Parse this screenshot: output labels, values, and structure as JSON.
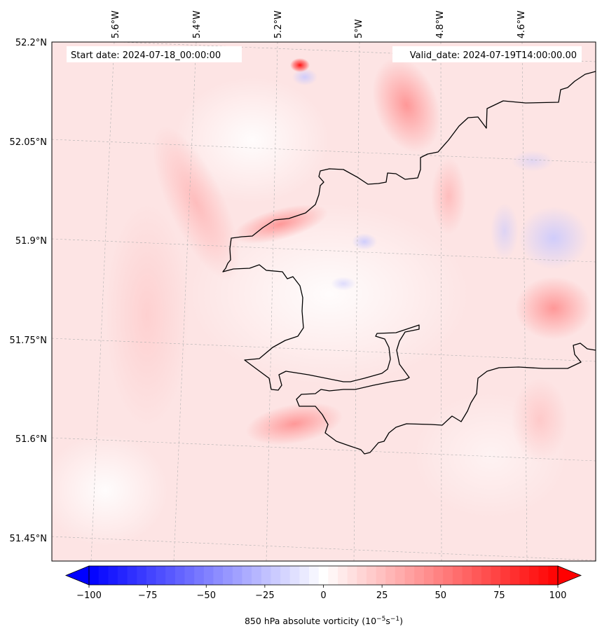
{
  "map": {
    "start_date_label": "Start date: 2024-07-18_00:00:00",
    "valid_date_label": "Valid_date: 2024-07-19T14:00:00.00",
    "lon_labels": [
      "5.6°W",
      "5.4°W",
      "5.2°W",
      "5°W",
      "4.8°W",
      "4.6°W"
    ],
    "lat_labels": [
      "52.2°N",
      "52.05°N",
      "51.9°N",
      "51.75°N",
      "51.6°N",
      "51.45°N"
    ]
  },
  "colorbar": {
    "ticks": [
      "−100",
      "−75",
      "−50",
      "−25",
      "0",
      "25",
      "50",
      "75",
      "100"
    ],
    "label_text": "850 hPa absolute vorticity (10",
    "label_exp1": "−5",
    "label_mid": "s",
    "label_exp2": "−1",
    "label_close": ")",
    "colormap": "bwr",
    "vmin": -100,
    "vmax": 100,
    "levels": 49
  },
  "colors": {
    "coastline": "#000000",
    "grid": "#b0b0b0",
    "background_tint": "#fde4e4"
  }
}
